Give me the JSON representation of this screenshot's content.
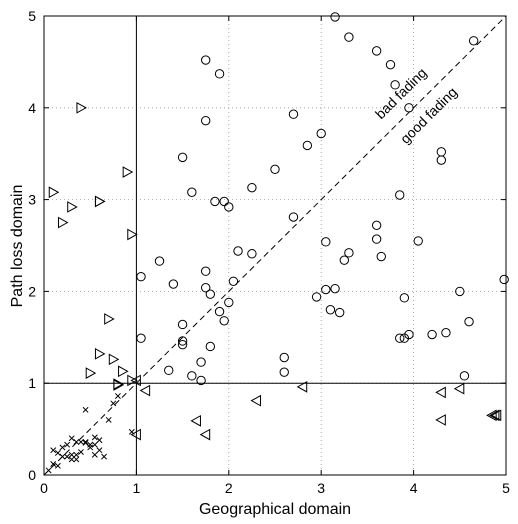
{
  "chart_data": {
    "type": "scatter",
    "xlabel": "Geographical domain",
    "ylabel": "Path loss domain",
    "xlim": [
      0,
      5
    ],
    "ylim": [
      0,
      5
    ],
    "xticks": [
      "0",
      "1",
      "2",
      "3",
      "4",
      "5"
    ],
    "yticks": [
      "0",
      "1",
      "2",
      "3",
      "4",
      "5"
    ],
    "grid": true,
    "diagonal": {
      "from": [
        0,
        0
      ],
      "to": [
        5,
        5
      ],
      "style": "dashed"
    },
    "reference_lines": [
      {
        "orientation": "vertical",
        "value": 1
      },
      {
        "orientation": "horizontal",
        "value": 1
      }
    ],
    "annotations": [
      {
        "text": "bad fading",
        "x": 3.9,
        "y": 4.12
      },
      {
        "text": "good fading",
        "x": 4.2,
        "y": 3.88
      }
    ],
    "series": [
      {
        "marker": "circle",
        "points": [
          [
            3.15,
            4.99
          ],
          [
            3.3,
            4.77
          ],
          [
            1.75,
            4.52
          ],
          [
            1.9,
            4.37
          ],
          [
            3.6,
            4.62
          ],
          [
            3.75,
            4.47
          ],
          [
            4.65,
            4.73
          ],
          [
            3.8,
            4.25
          ],
          [
            3.95,
            4.0
          ],
          [
            2.7,
            3.93
          ],
          [
            1.75,
            3.86
          ],
          [
            3.0,
            3.72
          ],
          [
            2.85,
            3.59
          ],
          [
            1.5,
            3.46
          ],
          [
            2.5,
            3.33
          ],
          [
            4.3,
            3.52
          ],
          [
            4.3,
            3.43
          ],
          [
            2.25,
            3.13
          ],
          [
            1.6,
            3.08
          ],
          [
            1.95,
            2.98
          ],
          [
            1.85,
            2.98
          ],
          [
            2.0,
            2.92
          ],
          [
            3.85,
            3.05
          ],
          [
            2.7,
            2.81
          ],
          [
            3.6,
            2.72
          ],
          [
            1.25,
            2.33
          ],
          [
            1.75,
            2.22
          ],
          [
            2.1,
            2.44
          ],
          [
            2.25,
            2.41
          ],
          [
            2.05,
            2.11
          ],
          [
            1.4,
            2.08
          ],
          [
            1.05,
            2.16
          ],
          [
            3.05,
            2.54
          ],
          [
            3.3,
            2.42
          ],
          [
            3.25,
            2.34
          ],
          [
            3.6,
            2.57
          ],
          [
            3.65,
            2.38
          ],
          [
            4.05,
            2.55
          ],
          [
            1.75,
            2.04
          ],
          [
            1.8,
            1.97
          ],
          [
            2.0,
            1.88
          ],
          [
            1.9,
            1.78
          ],
          [
            3.05,
            2.02
          ],
          [
            2.95,
            1.94
          ],
          [
            3.15,
            2.03
          ],
          [
            3.1,
            1.8
          ],
          [
            3.2,
            1.77
          ],
          [
            3.9,
            1.93
          ],
          [
            4.5,
            2.0
          ],
          [
            4.98,
            2.13
          ],
          [
            1.5,
            1.64
          ],
          [
            1.95,
            1.68
          ],
          [
            3.85,
            1.49
          ],
          [
            3.9,
            1.49
          ],
          [
            3.95,
            1.53
          ],
          [
            4.2,
            1.53
          ],
          [
            4.35,
            1.55
          ],
          [
            4.6,
            1.67
          ],
          [
            1.05,
            1.49
          ],
          [
            1.5,
            1.46
          ],
          [
            1.5,
            1.42
          ],
          [
            1.8,
            1.4
          ],
          [
            1.7,
            1.23
          ],
          [
            1.35,
            1.14
          ],
          [
            1.6,
            1.08
          ],
          [
            1.7,
            1.03
          ],
          [
            2.6,
            1.28
          ],
          [
            2.6,
            1.12
          ],
          [
            4.55,
            1.08
          ]
        ]
      },
      {
        "marker": "triangle-right",
        "points": [
          [
            0.4,
            4.0
          ],
          [
            0.9,
            3.3
          ],
          [
            0.1,
            3.08
          ],
          [
            0.3,
            2.92
          ],
          [
            0.6,
            2.98
          ],
          [
            0.6,
            2.98
          ],
          [
            0.2,
            2.75
          ],
          [
            0.95,
            2.62
          ],
          [
            0.7,
            1.7
          ],
          [
            0.6,
            1.32
          ],
          [
            0.75,
            1.26
          ],
          [
            0.5,
            1.11
          ],
          [
            0.85,
            1.13
          ],
          [
            0.95,
            1.03
          ],
          [
            0.8,
            0.99
          ],
          [
            0.8,
            0.98
          ]
        ]
      },
      {
        "marker": "triangle-left",
        "points": [
          [
            1.0,
            1.03
          ],
          [
            1.1,
            0.92
          ],
          [
            2.8,
            0.96
          ],
          [
            4.3,
            0.9
          ],
          [
            4.5,
            0.94
          ],
          [
            2.3,
            0.81
          ],
          [
            1.65,
            0.59
          ],
          [
            4.3,
            0.6
          ],
          [
            1.75,
            0.44
          ],
          [
            1.0,
            0.44
          ],
          [
            4.85,
            0.65
          ],
          [
            4.88,
            0.65
          ],
          [
            4.9,
            0.65
          ]
        ]
      },
      {
        "marker": "cross",
        "points": [
          [
            0.45,
            0.71
          ],
          [
            0.95,
            0.47
          ],
          [
            0.8,
            0.86
          ],
          [
            0.75,
            0.78
          ],
          [
            0.7,
            0.6
          ],
          [
            0.6,
            0.38
          ],
          [
            0.55,
            0.41
          ],
          [
            0.5,
            0.3
          ],
          [
            0.5,
            0.33
          ],
          [
            0.55,
            0.33
          ],
          [
            0.6,
            0.27
          ],
          [
            0.55,
            0.22
          ],
          [
            0.65,
            0.2
          ],
          [
            0.35,
            0.36
          ],
          [
            0.4,
            0.36
          ],
          [
            0.45,
            0.36
          ],
          [
            0.3,
            0.4
          ],
          [
            0.25,
            0.33
          ],
          [
            0.2,
            0.3
          ],
          [
            0.15,
            0.24
          ],
          [
            0.1,
            0.27
          ],
          [
            0.2,
            0.2
          ],
          [
            0.3,
            0.17
          ],
          [
            0.35,
            0.17
          ],
          [
            0.3,
            0.22
          ],
          [
            0.35,
            0.22
          ],
          [
            0.4,
            0.25
          ],
          [
            0.25,
            0.2
          ],
          [
            0.15,
            0.1
          ],
          [
            0.1,
            0.12
          ],
          [
            0.05,
            0.05
          ],
          [
            0.45,
            0.35
          ]
        ]
      }
    ]
  }
}
